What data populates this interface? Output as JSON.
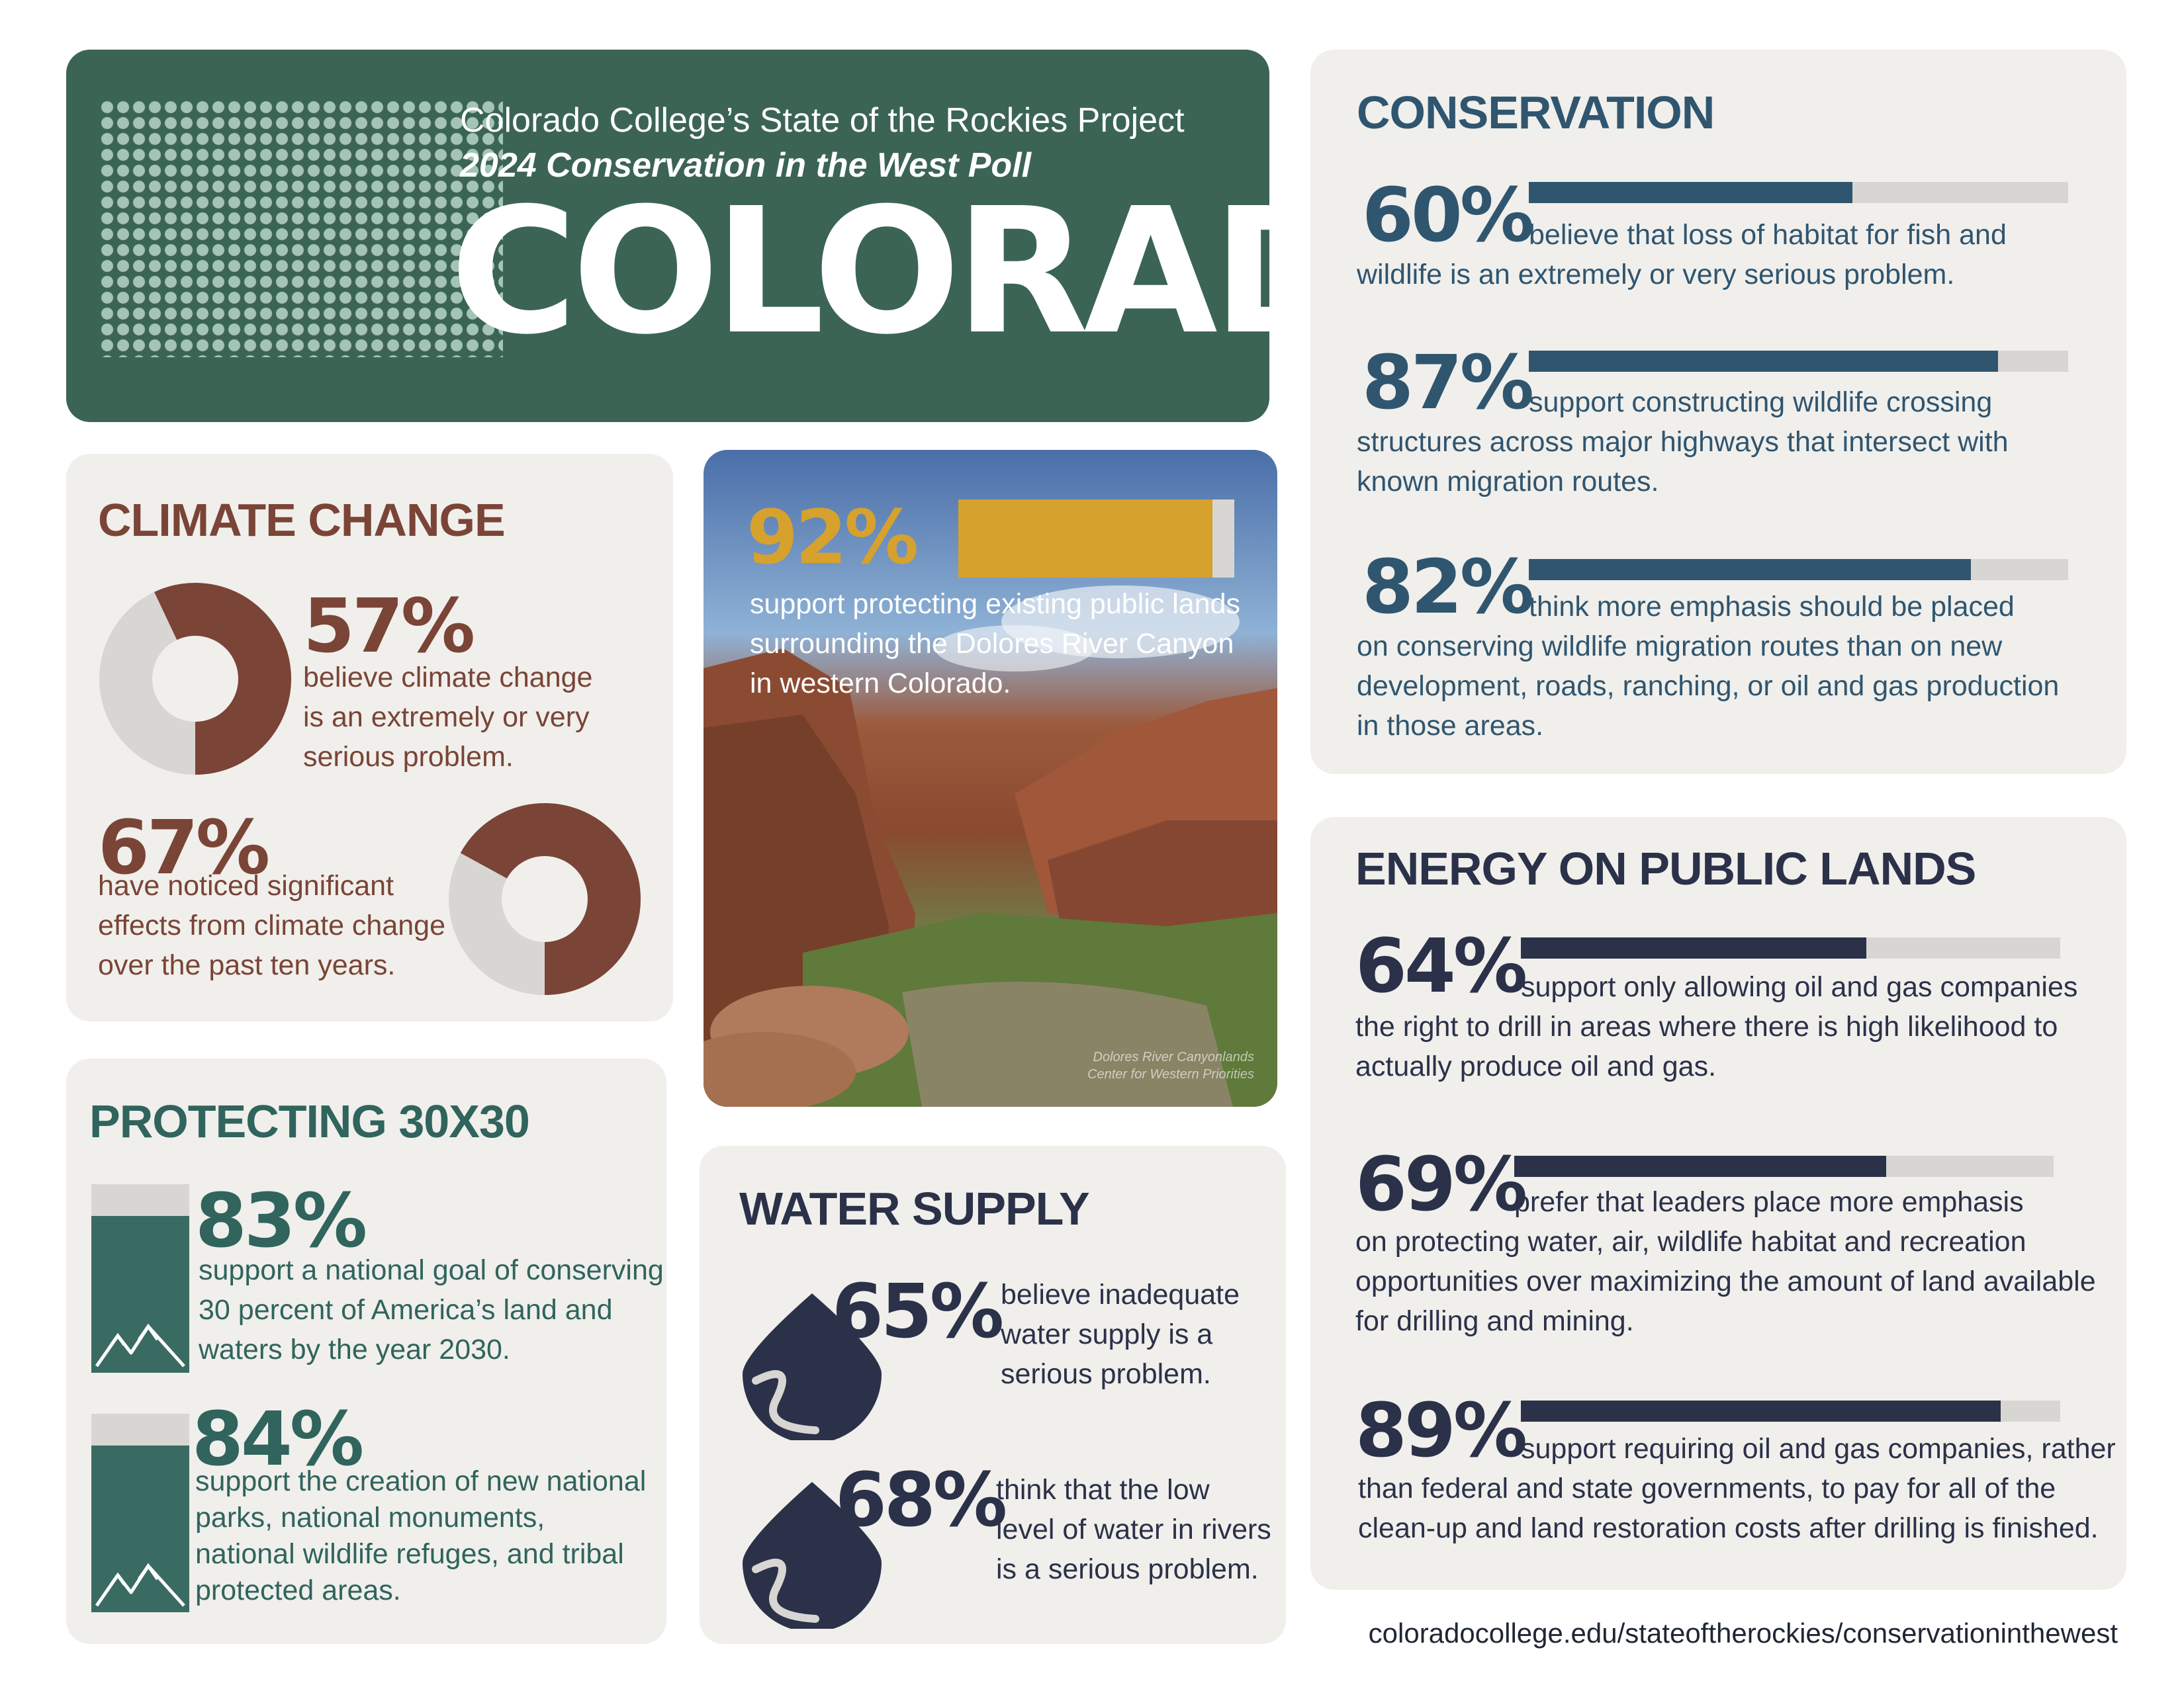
{
  "header": {
    "kicker": "Colorado College’s State of the Rockies Project",
    "subtitle": "2024 Conservation in the West Poll",
    "state": "COLORADO"
  },
  "climate": {
    "title": "CLIMATE CHANGE",
    "stat1": {
      "value": 57,
      "label": "57%",
      "lines": [
        "believe climate change",
        "is an extremely or very",
        "serious problem."
      ]
    },
    "stat2": {
      "value": 67,
      "label": "67%",
      "lines": [
        "have noticed significant",
        "effects from climate change",
        "over the past ten years."
      ]
    },
    "colors": {
      "accent": "#7a4437",
      "rest": "#d8d6d2"
    }
  },
  "photo": {
    "value": 92,
    "label": "92%",
    "lines": [
      "support protecting existing public lands",
      "surrounding the Dolores River Canyon",
      "in western Colorado."
    ],
    "credit_lines": [
      "Dolores River Canyonlands",
      "Center for Western Priorities"
    ],
    "accent": "#d6a12d"
  },
  "conservation": {
    "title": "CONSERVATION",
    "accent": "#30556f",
    "stats": [
      {
        "value": 60,
        "label": "60%",
        "lines": [
          "believe that loss of habitat for fish and",
          "wildlife is an extremely or very serious problem."
        ]
      },
      {
        "value": 87,
        "label": "87%",
        "lines": [
          "support constructing wildlife crossing",
          "structures across major highways that intersect with",
          "known migration routes."
        ]
      },
      {
        "value": 82,
        "label": "82%",
        "lines": [
          "think more emphasis should be placed",
          "on conserving wildlife migration routes than on new",
          "development, roads, ranching, or oil and gas production",
          "in those areas."
        ]
      }
    ]
  },
  "energy": {
    "title": "ENERGY ON PUBLIC LANDS",
    "accent": "#2b3149",
    "stats": [
      {
        "value": 64,
        "label": "64%",
        "lines": [
          "support only allowing oil and gas companies",
          "the right to drill in areas where there is high likelihood to",
          "actually produce oil and gas."
        ]
      },
      {
        "value": 69,
        "label": "69%",
        "lines": [
          "prefer that leaders place more emphasis",
          "on protecting water, air, wildlife habitat and recreation",
          "opportunities over maximizing the amount of land available",
          "for drilling and mining."
        ]
      },
      {
        "value": 89,
        "label": "89%",
        "lines": [
          "support requiring oil and gas companies, rather",
          "than federal and state governments, to pay for all of the",
          "clean-up and land restoration costs after drilling is finished."
        ]
      }
    ]
  },
  "protect": {
    "title": "PROTECTING 30X30",
    "accent": "#3a6b63",
    "stats": [
      {
        "value": 83,
        "label": "83%",
        "lines": [
          "support a national goal of conserving",
          "30 percent of America’s land and",
          "waters by the year 2030."
        ]
      },
      {
        "value": 84,
        "label": "84%",
        "lines": [
          "support the creation of new national",
          "parks, national monuments,",
          "national wildlife refuges, and tribal",
          "protected areas."
        ]
      }
    ]
  },
  "water": {
    "title": "WATER SUPPLY",
    "stats": [
      {
        "value": 65,
        "label": "65%",
        "lines": [
          "believe inadequate",
          "water supply is a",
          "serious problem."
        ]
      },
      {
        "value": 68,
        "label": "68%",
        "lines": [
          "think that the low",
          "level of water in rivers",
          "is a serious problem."
        ]
      }
    ]
  },
  "footer": {
    "url": "coloradocollege.edu/stateoftherockies/conservationinthewest"
  }
}
